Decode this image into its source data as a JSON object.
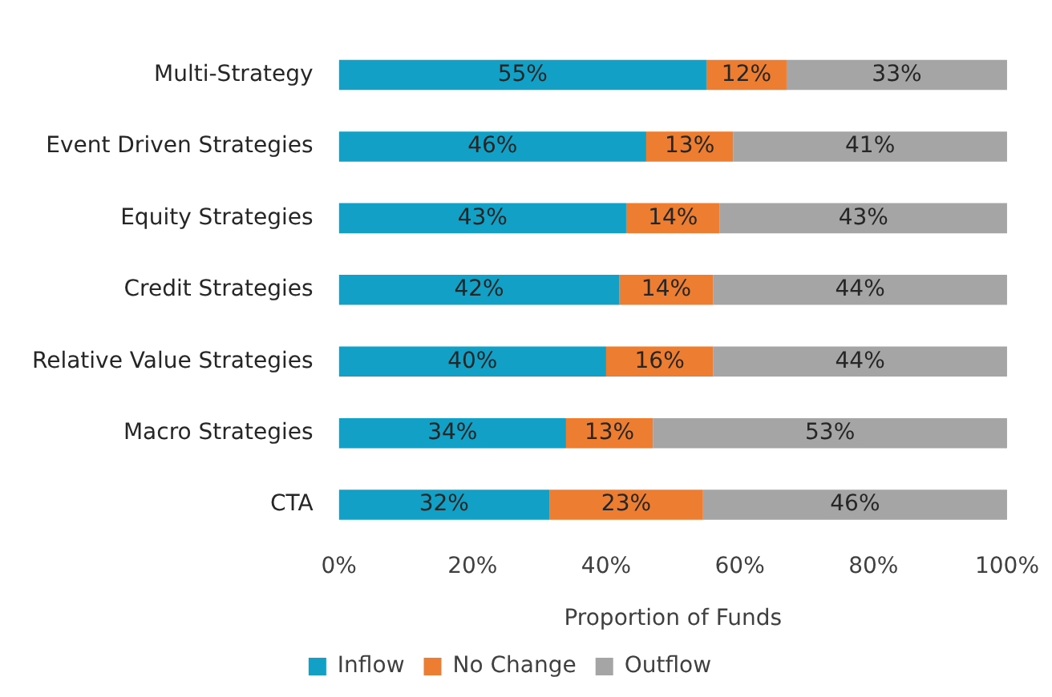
{
  "chart_data": {
    "type": "bar",
    "orientation": "horizontal",
    "stacked": true,
    "categories": [
      "Multi-Strategy",
      "Event Driven Strategies",
      "Equity Strategies",
      "Credit Strategies",
      "Relative Value Strategies",
      "Macro Strategies",
      "CTA"
    ],
    "series": [
      {
        "name": "Inflow",
        "color": "#12a0c6",
        "values": [
          55,
          46,
          43,
          42,
          40,
          34,
          31.5
        ],
        "value_labels": [
          "55%",
          "46%",
          "43%",
          "42%",
          "40%",
          "34%",
          "32%"
        ]
      },
      {
        "name": "No Change",
        "color": "#ed7d31",
        "values": [
          12,
          13,
          14,
          14,
          16,
          13,
          23
        ],
        "value_labels": [
          "12%",
          "13%",
          "14%",
          "14%",
          "16%",
          "13%",
          "23%"
        ]
      },
      {
        "name": "Outflow",
        "color": "#a5a5a5",
        "values": [
          33,
          41,
          43,
          44,
          44,
          53,
          45.5
        ],
        "value_labels": [
          "33%",
          "41%",
          "43%",
          "44%",
          "44%",
          "53%",
          "46%"
        ]
      }
    ],
    "xlim": [
      0,
      100
    ],
    "xticks": [
      {
        "value": 0,
        "label": "0%"
      },
      {
        "value": 20,
        "label": "20%"
      },
      {
        "value": 40,
        "label": "40%"
      },
      {
        "value": 60,
        "label": "60%"
      },
      {
        "value": 80,
        "label": "80%"
      },
      {
        "value": 100,
        "label": "100%"
      }
    ],
    "xlabel": "Proportion of Funds",
    "legend": "bottom",
    "grid": false
  }
}
